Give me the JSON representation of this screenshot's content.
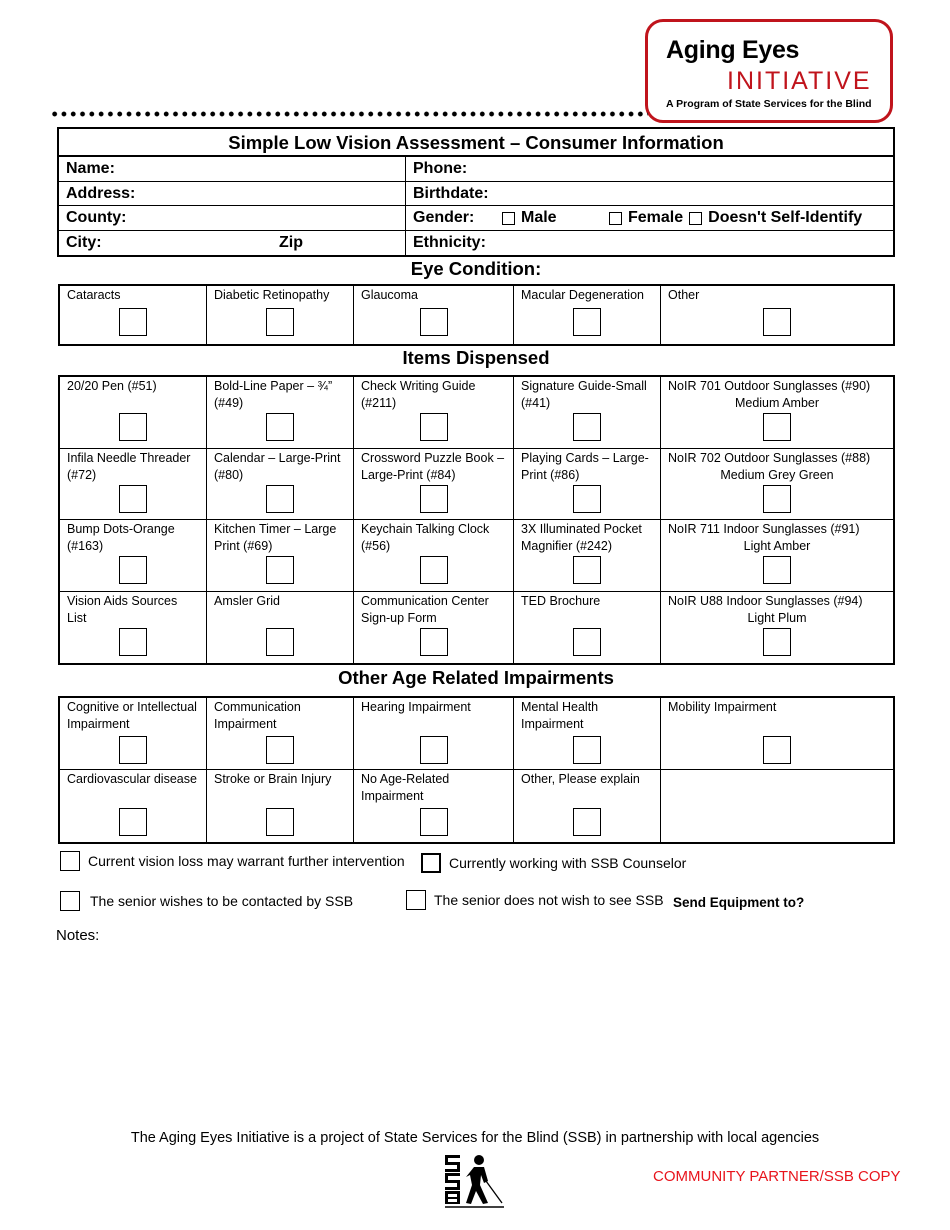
{
  "logo": {
    "line1": "Aging Eyes",
    "line2": "INITIATIVE",
    "tagline": "A Program of State Services for the Blind"
  },
  "info": {
    "title": "Simple Low Vision Assessment – Consumer Information",
    "name": "Name:",
    "phone": "Phone:",
    "address": "Address:",
    "birthdate": "Birthdate:",
    "county": "County:",
    "gender": "Gender:",
    "male": "Male",
    "female": "Female",
    "nonbinary": "Doesn't Self-Identify",
    "city": "City:",
    "zip": "Zip",
    "ethnicity": "Ethnicity:"
  },
  "eye_condition": {
    "title": "Eye Condition:",
    "rows": [
      [
        {
          "label": "Cataracts"
        },
        {
          "label": "Diabetic Retinopathy"
        },
        {
          "label": "Glaucoma"
        },
        {
          "label": "Macular Degeneration"
        },
        {
          "label": "Other"
        }
      ]
    ]
  },
  "items": {
    "title": "Items Dispensed",
    "rows": [
      [
        {
          "label": "20/20 Pen (#51)"
        },
        {
          "label": "Bold-Line Paper – ¾” (#49)"
        },
        {
          "label": "Check Writing Guide (#211)"
        },
        {
          "label": "Signature Guide-Small (#41)"
        },
        {
          "label": "NoIR 701 Outdoor Sunglasses (#90)",
          "sub": "Medium Amber"
        }
      ],
      [
        {
          "label": "Infila Needle Threader (#72)"
        },
        {
          "label": "Calendar – Large-Print (#80)"
        },
        {
          "label": "Crossword Puzzle Book – Large-Print (#84)"
        },
        {
          "label": "Playing Cards – Large-Print (#86)"
        },
        {
          "label": "NoIR 702 Outdoor Sunglasses (#88)",
          "sub": "Medium Grey Green"
        }
      ],
      [
        {
          "label": "Bump Dots-Orange (#163)"
        },
        {
          "label": "Kitchen Timer – Large Print (#69)"
        },
        {
          "label": "Keychain Talking Clock (#56)"
        },
        {
          "label": "3X Illuminated Pocket Magnifier (#242)"
        },
        {
          "label": "NoIR 711 Indoor Sunglasses (#91)",
          "sub": "Light Amber"
        }
      ],
      [
        {
          "label": "Vision Aids Sources List"
        },
        {
          "label": "Amsler Grid"
        },
        {
          "label": "Communication Center Sign-up Form"
        },
        {
          "label": "TED Brochure"
        },
        {
          "label": "NoIR U88 Indoor Sunglasses (#94)",
          "sub": "Light Plum"
        }
      ]
    ]
  },
  "impairments": {
    "title": "Other Age Related Impairments",
    "rows": [
      [
        {
          "label": "Cognitive or Intellectual Impairment"
        },
        {
          "label": "Communication Impairment"
        },
        {
          "label": "Hearing Impairment"
        },
        {
          "label": "Mental Health Impairment"
        },
        {
          "label": "Mobility Impairment"
        }
      ],
      [
        {
          "label": "Cardiovascular disease"
        },
        {
          "label": "Stroke or Brain Injury"
        },
        {
          "label": "No Age-Related Impairment"
        },
        {
          "label": "Other, Please explain"
        },
        {
          "label": "",
          "nobox": true
        }
      ]
    ]
  },
  "checks": {
    "further": "Current vision loss may warrant further intervention",
    "counselor": "Currently working with SSB Counselor",
    "contact": "The senior wishes to be contacted by SSB",
    "nocontact": "The senior does not wish to see SSB",
    "send": "Send Equipment to?"
  },
  "notes": "Notes:",
  "footer": {
    "text": "The Aging Eyes Initiative is a project of State Services for the Blind (SSB) in partnership with local agencies",
    "copy": "COMMUNITY PARTNER/SSB COPY",
    "logo_text": "SSB"
  },
  "colors": {
    "brand_red": "#c0141c",
    "copy_red": "#e8141c"
  }
}
